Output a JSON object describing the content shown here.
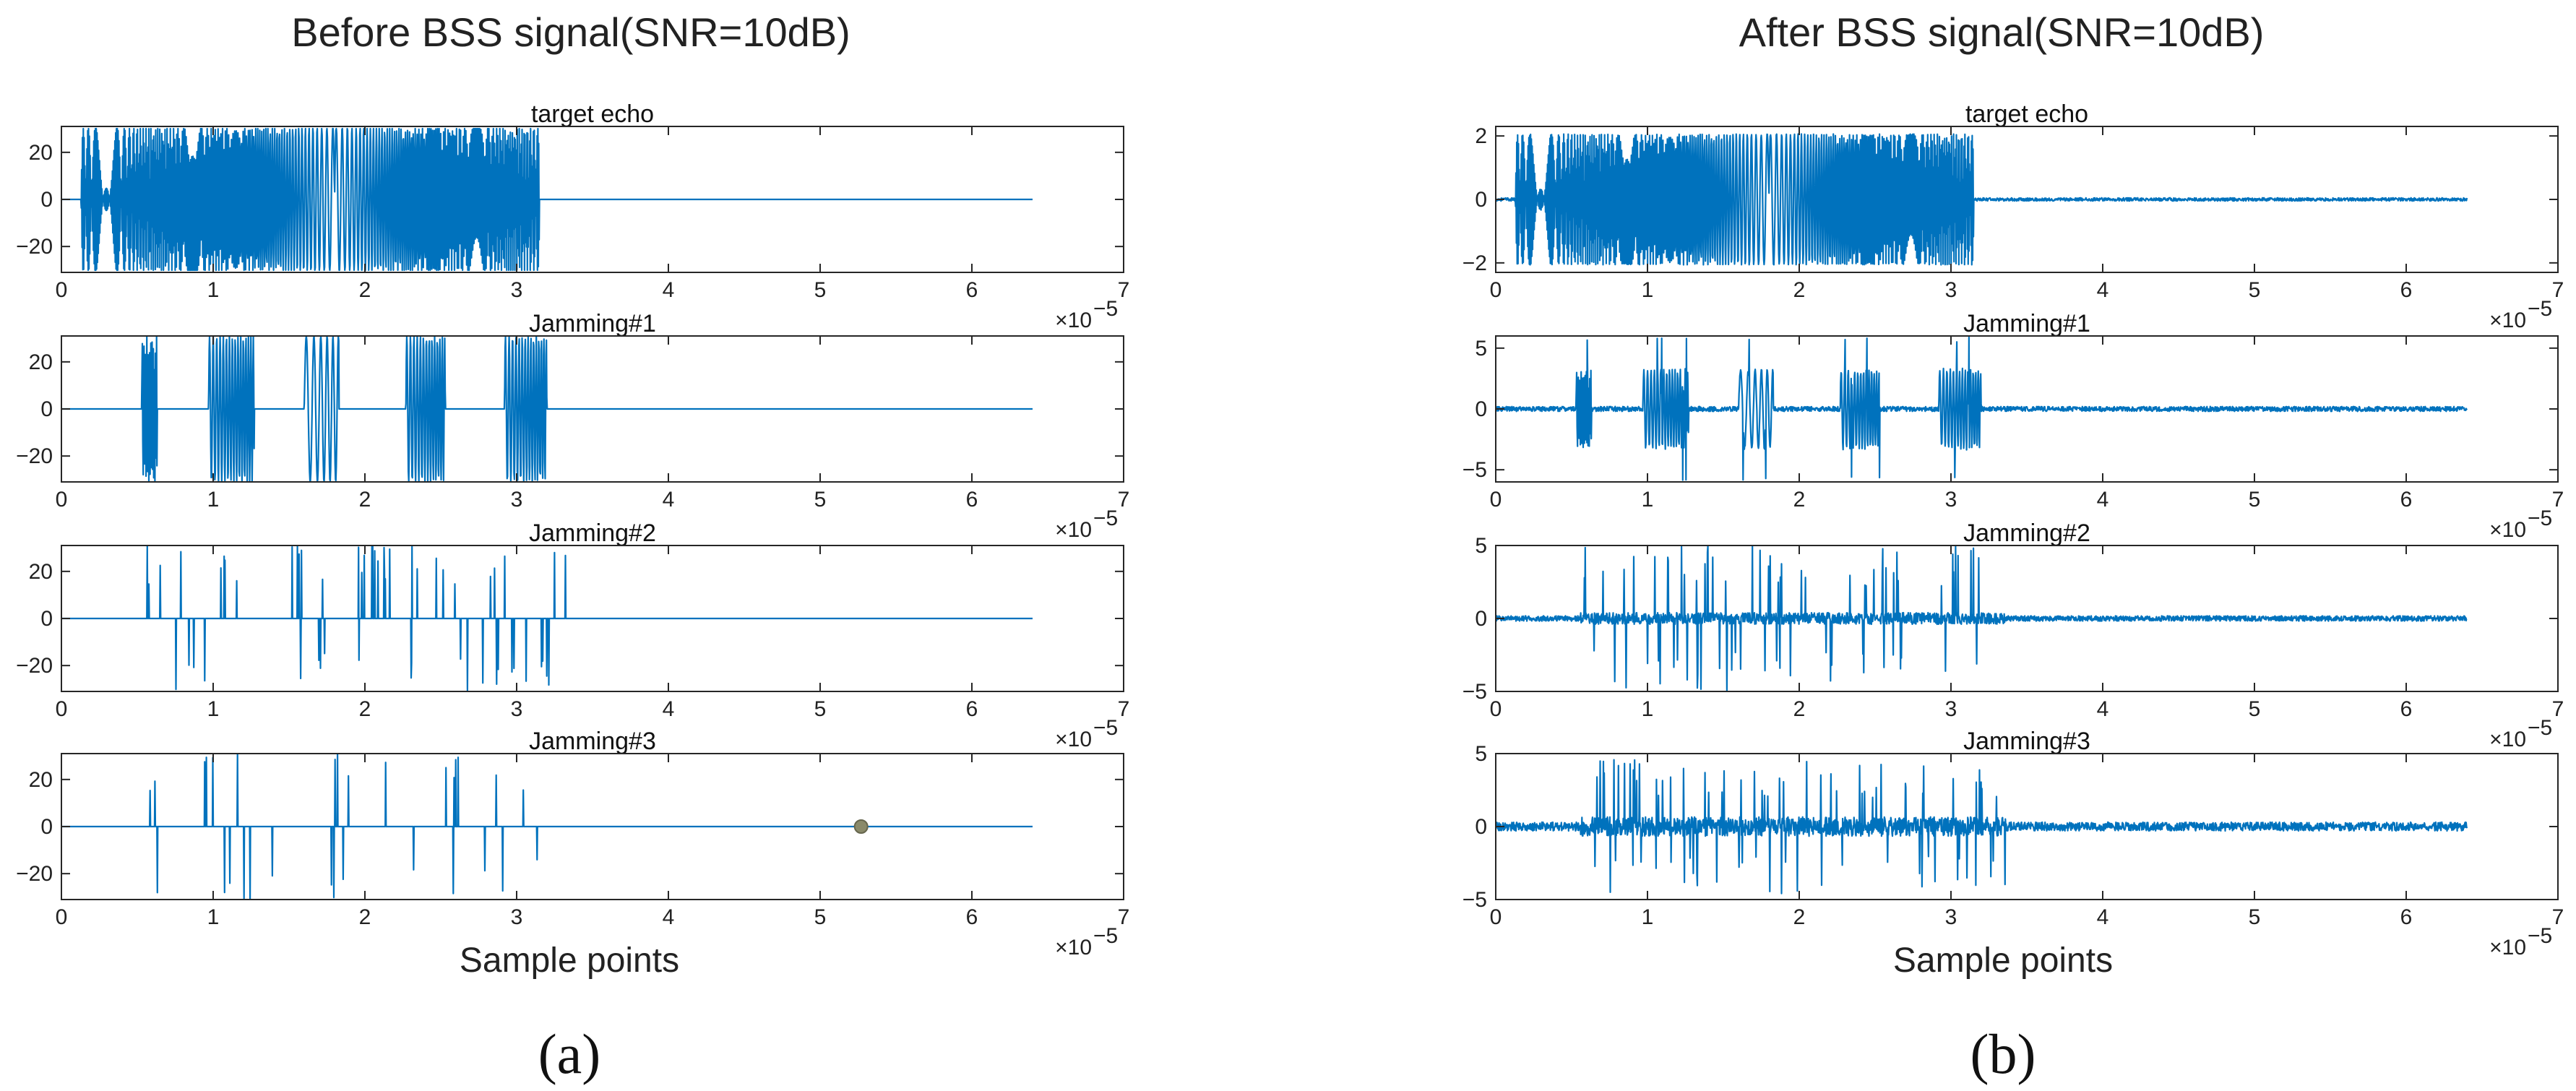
{
  "figure": {
    "panels": [
      {
        "title": "Before BSS signal(SNR=10dB)",
        "xlabel": "Sample points",
        "label": "(a)",
        "subplots": [
          {
            "title": "target echo",
            "yticks": [
              -20,
              0,
              20
            ],
            "ylim": [
              -31,
              31
            ]
          },
          {
            "title": "Jamming#1",
            "yticks": [
              -20,
              0,
              20
            ],
            "ylim": [
              -31,
              31
            ]
          },
          {
            "title": "Jamming#2",
            "yticks": [
              -20,
              0,
              20
            ],
            "ylim": [
              -31,
              31
            ]
          },
          {
            "title": "Jamming#3",
            "yticks": [
              -20,
              0,
              20
            ],
            "ylim": [
              -31,
              31
            ]
          }
        ]
      },
      {
        "title": "After BSS signal(SNR=10dB)",
        "xlabel": "Sample points",
        "label": "(b)",
        "subplots": [
          {
            "title": "target echo",
            "yticks": [
              -2,
              0,
              2
            ],
            "ylim": [
              -2.3,
              2.3
            ]
          },
          {
            "title": "Jamming#1",
            "yticks": [
              -5,
              0,
              5
            ],
            "ylim": [
              -6,
              6
            ]
          },
          {
            "title": "Jamming#2",
            "yticks": [
              -5,
              0,
              5
            ],
            "ylim": [
              -5,
              5
            ]
          },
          {
            "title": "Jamming#3",
            "yticks": [
              -5,
              0,
              5
            ],
            "ylim": [
              -5,
              5
            ]
          }
        ]
      }
    ],
    "xticks": [
      0,
      1,
      2,
      3,
      4,
      5,
      6,
      7
    ],
    "xlim": [
      0,
      7
    ],
    "x_exponent": "×10",
    "x_exponent_power": "−5"
  },
  "chart_data": [
    {
      "type": "line",
      "title": "target echo",
      "xlim": [
        0,
        7
      ],
      "ylim": [
        -31,
        31
      ],
      "x_scale": "1e-5",
      "series": [
        {
          "kind": "lfm_burst",
          "segments": [
            [
              0.13,
              3.15
            ]
          ],
          "null_regions": [
            [
              1.55,
              2.05
            ]
          ],
          "amplitude": 31,
          "noise": 0,
          "x_end": 6.4
        }
      ]
    },
    {
      "type": "line",
      "title": "Jamming#1",
      "xlim": [
        0,
        7
      ],
      "ylim": [
        -31,
        31
      ],
      "x_scale": "1e-5",
      "series": [
        {
          "kind": "chirp_pulses",
          "segments": [
            [
              0.53,
              0.63
            ],
            [
              0.97,
              1.27
            ],
            [
              1.6,
              1.83
            ],
            [
              2.27,
              2.53
            ],
            [
              2.92,
              3.2
            ]
          ],
          "amplitude": 31,
          "noise": 0,
          "x_end": 6.4
        }
      ]
    },
    {
      "type": "line",
      "title": "Jamming#2",
      "xlim": [
        0,
        7
      ],
      "ylim": [
        -31,
        31
      ],
      "x_scale": "1e-5",
      "series": [
        {
          "kind": "spikes",
          "segments": [
            [
              0.56,
              3.36
            ]
          ],
          "spike_count": 58,
          "amplitude": 31,
          "noise": 0,
          "x_end": 6.4
        }
      ]
    },
    {
      "type": "line",
      "title": "Jamming#3",
      "xlim": [
        0,
        7
      ],
      "ylim": [
        -31,
        31
      ],
      "x_scale": "1e-5",
      "series": [
        {
          "kind": "spikes",
          "segments": [
            [
              0.58,
              3.3
            ]
          ],
          "spike_count": 30,
          "amplitude": 31,
          "noise": 0,
          "x_end": 6.4
        }
      ],
      "marker": {
        "x": 5.27,
        "y": 0
      }
    },
    {
      "type": "line",
      "title": "target echo",
      "xlim": [
        0,
        7
      ],
      "ylim": [
        -2.3,
        2.3
      ],
      "x_scale": "1e-5",
      "series": [
        {
          "kind": "lfm_burst",
          "segments": [
            [
              0.13,
              3.15
            ]
          ],
          "null_regions": [
            [
              1.55,
              2.05
            ]
          ],
          "amplitude": 2.1,
          "noise": 0.05,
          "x_end": 6.4
        }
      ]
    },
    {
      "type": "line",
      "title": "Jamming#1",
      "xlim": [
        0,
        7
      ],
      "ylim": [
        -6,
        6
      ],
      "x_scale": "1e-5",
      "series": [
        {
          "kind": "chirp_pulses",
          "segments": [
            [
              0.53,
              0.63
            ],
            [
              0.97,
              1.27
            ],
            [
              1.6,
              1.83
            ],
            [
              2.27,
              2.53
            ],
            [
              2.92,
              3.2
            ]
          ],
          "amplitude": 3.2,
          "noise": 0.2,
          "x_end": 6.4,
          "spike_max": 6
        }
      ]
    },
    {
      "type": "line",
      "title": "Jamming#2",
      "xlim": [
        0,
        7
      ],
      "ylim": [
        -5,
        5
      ],
      "x_scale": "1e-5",
      "series": [
        {
          "kind": "spikes",
          "segments": [
            [
              0.56,
              3.36
            ]
          ],
          "spike_count": 80,
          "amplitude": 4.8,
          "noise": 0.18,
          "x_end": 6.4
        }
      ]
    },
    {
      "type": "line",
      "title": "Jamming#3",
      "xlim": [
        0,
        7
      ],
      "ylim": [
        -5,
        5
      ],
      "x_scale": "1e-5",
      "series": [
        {
          "kind": "spikes",
          "segments": [
            [
              0.56,
              3.36
            ]
          ],
          "spike_count": 90,
          "amplitude": 4.4,
          "noise": 0.3,
          "x_end": 6.4
        }
      ]
    }
  ]
}
